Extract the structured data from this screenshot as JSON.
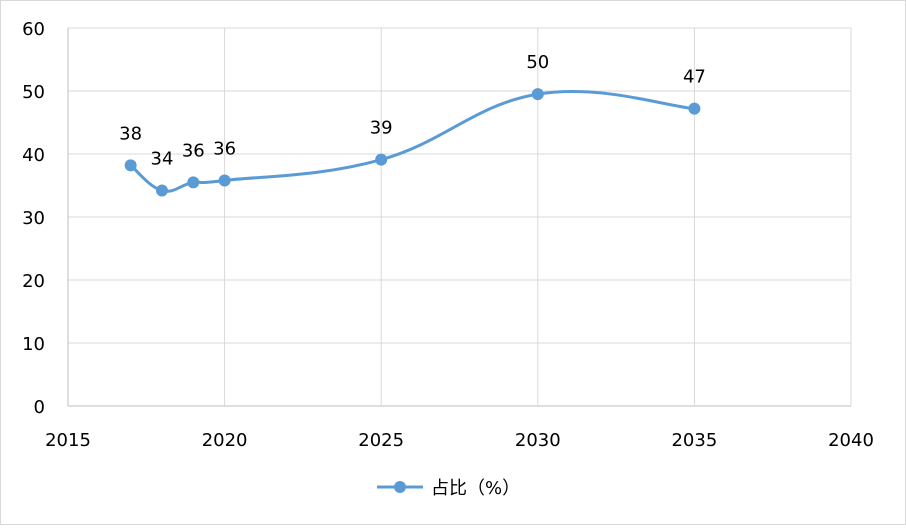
{
  "chart_data": {
    "type": "scatter",
    "mode": "smooth-line-with-markers",
    "series": [
      {
        "name": "占比（%）",
        "points": [
          {
            "x": 2017,
            "y": 38.2,
            "label": "38"
          },
          {
            "x": 2018,
            "y": 34.2,
            "label": "34"
          },
          {
            "x": 2019,
            "y": 35.5,
            "label": "36"
          },
          {
            "x": 2020,
            "y": 35.8,
            "label": "36"
          },
          {
            "x": 2025,
            "y": 39.1,
            "label": "39"
          },
          {
            "x": 2030,
            "y": 49.5,
            "label": "50"
          },
          {
            "x": 2035,
            "y": 47.2,
            "label": "47"
          }
        ],
        "color": "#5b9bd5"
      }
    ],
    "xlim": [
      2015,
      2040
    ],
    "ylim": [
      0,
      60
    ],
    "x_ticks": [
      "2015",
      "2020",
      "2025",
      "2030",
      "2035",
      "2040"
    ],
    "y_ticks": [
      "0",
      "10",
      "20",
      "30",
      "40",
      "50",
      "60"
    ],
    "grid": true,
    "legend_position": "bottom",
    "title": "",
    "xlabel": "",
    "ylabel": ""
  },
  "colors": {
    "series": "#5b9bd5",
    "grid": "#d9d9d9",
    "axis": "#bfbfbf"
  }
}
